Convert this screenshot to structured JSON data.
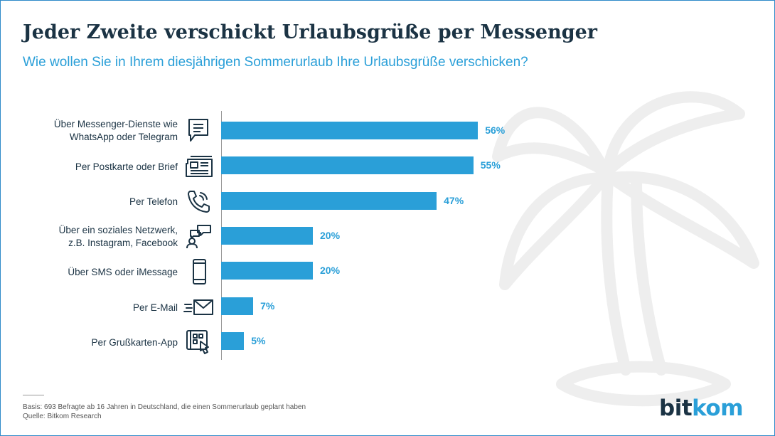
{
  "title": "Jeder Zweite verschickt Urlaubsgrüße per Messenger",
  "subtitle": "Wie wollen Sie in Ihrem diesjährigen Sommerurlaub Ihre Urlaubsgrüße verschicken?",
  "chart_data": {
    "type": "bar",
    "orientation": "horizontal",
    "categories": [
      "Über Messenger-Dienste wie WhatsApp oder Telegram",
      "Per Postkarte oder Brief",
      "Per Telefon",
      "Über ein soziales Netzwerk, z.B. Instagram, Facebook",
      "Über SMS oder iMessage",
      "Per E-Mail",
      "Per Grußkarten-App"
    ],
    "category_lines": [
      [
        "Über Messenger-Dienste wie",
        "WhatsApp oder Telegram"
      ],
      [
        "Per Postkarte oder Brief"
      ],
      [
        "Per Telefon"
      ],
      [
        "Über ein soziales Netzwerk,",
        "z.B. Instagram, Facebook"
      ],
      [
        "Über SMS oder iMessage"
      ],
      [
        "Per E-Mail"
      ],
      [
        "Per Grußkarten-App"
      ]
    ],
    "values": [
      56,
      55,
      47,
      20,
      20,
      7,
      5
    ],
    "value_labels": [
      "56%",
      "55%",
      "47%",
      "20%",
      "20%",
      "7%",
      "5%"
    ],
    "icons": [
      "chat-bubble-icon",
      "newspaper-icon",
      "phone-icon",
      "social-network-icon",
      "smartphone-icon",
      "email-icon",
      "greeting-card-app-icon"
    ],
    "bar_color": "#2a9fd8",
    "grid": false
  },
  "footer": {
    "basis": "Basis: 693 Befragte ab 16 Jahren in Deutschland, die einen Sommerurlaub geplant haben",
    "source": "Quelle: Bitkom Research"
  },
  "logo": {
    "part1": "bit",
    "part2": "kom"
  },
  "colors": {
    "accent": "#2a9fd8",
    "text": "#1b3344",
    "frame": "#2f8ac9"
  }
}
